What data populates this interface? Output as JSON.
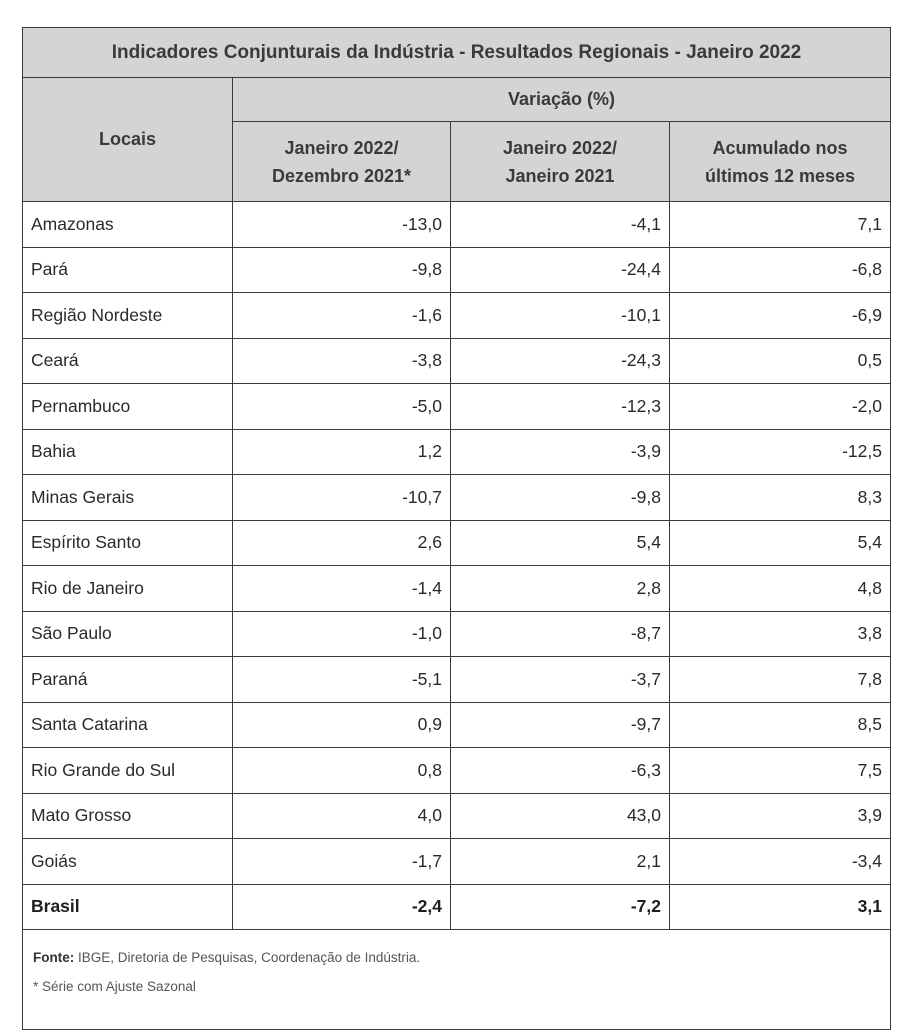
{
  "table": {
    "title": "Indicadores Conjunturais da Indústria - Resultados Regionais - Janeiro 2022",
    "locals_header": "Locais",
    "variation_header": "Variação (%)",
    "columns": [
      {
        "line1": "Janeiro 2022/",
        "line2": "Dezembro 2021*"
      },
      {
        "line1": "Janeiro 2022/",
        "line2": "Janeiro 2021"
      },
      {
        "line1": "Acumulado nos",
        "line2": "últimos 12 meses"
      }
    ],
    "rows": [
      {
        "local": "Amazonas",
        "values": [
          "-13,0",
          "-4,1",
          "7,1"
        ]
      },
      {
        "local": "Pará",
        "values": [
          "-9,8",
          "-24,4",
          "-6,8"
        ]
      },
      {
        "local": "Região Nordeste",
        "values": [
          "-1,6",
          "-10,1",
          "-6,9"
        ]
      },
      {
        "local": "Ceará",
        "values": [
          "-3,8",
          "-24,3",
          "0,5"
        ]
      },
      {
        "local": "Pernambuco",
        "values": [
          "-5,0",
          "-12,3",
          "-2,0"
        ]
      },
      {
        "local": "Bahia",
        "values": [
          "1,2",
          "-3,9",
          "-12,5"
        ]
      },
      {
        "local": "Minas Gerais",
        "values": [
          "-10,7",
          "-9,8",
          "8,3"
        ]
      },
      {
        "local": "Espírito Santo",
        "values": [
          "2,6",
          "5,4",
          "5,4"
        ]
      },
      {
        "local": "Rio de Janeiro",
        "values": [
          "-1,4",
          "2,8",
          "4,8"
        ]
      },
      {
        "local": "São Paulo",
        "values": [
          "-1,0",
          "-8,7",
          "3,8"
        ]
      },
      {
        "local": "Paraná",
        "values": [
          "-5,1",
          "-3,7",
          "7,8"
        ]
      },
      {
        "local": "Santa Catarina",
        "values": [
          "0,9",
          "-9,7",
          "8,5"
        ]
      },
      {
        "local": "Rio Grande do Sul",
        "values": [
          "0,8",
          "-6,3",
          "7,5"
        ]
      },
      {
        "local": "Mato Grosso",
        "values": [
          "4,0",
          "43,0",
          "3,9"
        ]
      },
      {
        "local": "Goiás",
        "values": [
          "-1,7",
          "2,1",
          "-3,4"
        ]
      },
      {
        "local": "Brasil",
        "values": [
          "-2,4",
          "-7,2",
          "3,1"
        ]
      }
    ],
    "footer": {
      "source_label": "Fonte:",
      "source_text": " IBGE, Diretoria de Pesquisas, Coordenação de Indústria.",
      "note": "* Série com Ajuste Sazonal"
    }
  }
}
